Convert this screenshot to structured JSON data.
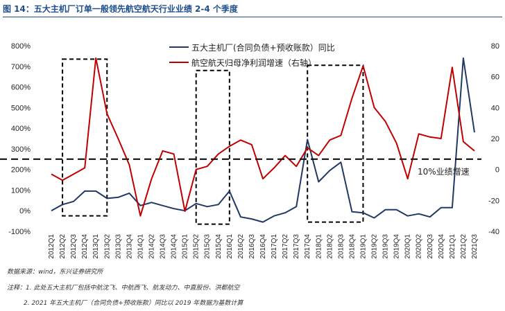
{
  "title": "图 14：五大主机厂订单一般领先航空航天行业业绩 2-4 个季度",
  "source": "数据来源：wind，东兴证券研究所",
  "notes": [
    "注释：1. 此处五大主机厂包括中航沈飞、中航西飞、航发动力、中直股份、洪都航空",
    "2. 2021 年五大主机厂（合同负债+预收账款）同比以 2019 年数据为基数计算"
  ],
  "chart_data": {
    "type": "line",
    "categories": [
      "2012Q1",
      "2012Q2",
      "2012Q3",
      "2012Q4",
      "2013Q1",
      "2013Q2",
      "2013Q3",
      "2013Q4",
      "2014Q1",
      "2014Q2",
      "2014Q3",
      "2014Q4",
      "2015Q1",
      "2015Q2",
      "2015Q3",
      "2015Q4",
      "2016Q1",
      "2016Q2",
      "2016Q3",
      "2016Q4",
      "2017Q1",
      "2017Q2",
      "2017Q3",
      "2017Q4",
      "2018Q1",
      "2018Q2",
      "2018Q3",
      "2018Q4",
      "2019Q1",
      "2019Q2",
      "2019Q3",
      "2019Q4",
      "2020Q1",
      "2020Q2",
      "2020Q3",
      "2020Q4",
      "2021Q1",
      "2021Q2",
      "2021Q3"
    ],
    "y_left": {
      "ticks": [
        "-100%",
        "0%",
        "100%",
        "200%",
        "300%",
        "400%",
        "500%",
        "600%",
        "700%",
        "800%"
      ],
      "min": -100,
      "max": 800
    },
    "y_right": {
      "ticks": [
        "-40",
        "-20",
        "0",
        "20",
        "40",
        "60",
        "80"
      ],
      "min": -40,
      "max": 80
    },
    "series": [
      {
        "name": "五大主机厂(合同负债+预收账款）同比",
        "axis": "left",
        "color": "#1f3864",
        "values": [
          0,
          30,
          45,
          95,
          95,
          60,
          65,
          85,
          25,
          40,
          25,
          10,
          0,
          35,
          20,
          30,
          95,
          -30,
          -40,
          -55,
          -25,
          -10,
          20,
          345,
          140,
          195,
          235,
          -5,
          -10,
          -35,
          5,
          5,
          -25,
          -15,
          -30,
          15,
          15,
          740,
          380
        ]
      },
      {
        "name": "航空航天归母净利润增速（右轴）",
        "axis": "right",
        "color": "#c00000",
        "values": [
          -3,
          -7,
          -3,
          1,
          72,
          36,
          20,
          3,
          -30,
          -6,
          12,
          10,
          -27,
          0,
          2,
          10,
          15,
          19,
          16,
          -6,
          1,
          9,
          2,
          14,
          9,
          19,
          22,
          46,
          67,
          40,
          31,
          17,
          -6,
          23,
          21,
          20,
          66,
          18,
          12
        ]
      }
    ],
    "reference_line": {
      "axis": "left",
      "value": 250,
      "label": "10%业绩增速",
      "style": "dashed"
    },
    "highlight_boxes": [
      {
        "from": "2012Q2",
        "to": "2013Q2",
        "y_top": 735,
        "y_bottom": -25
      },
      {
        "from": "2015Q2",
        "to": "2016Q1",
        "y_top": 680,
        "y_bottom": -65
      },
      {
        "from": "2017Q4",
        "to": "2019Q1",
        "y_top": 705,
        "y_bottom": -55
      }
    ],
    "legend_position": "top-center",
    "grid": false
  }
}
